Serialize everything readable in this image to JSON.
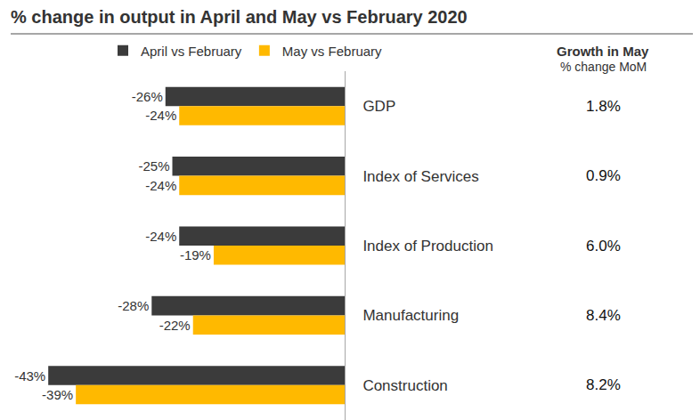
{
  "chart_data": {
    "type": "bar",
    "title": "% change in output in April and May vs February 2020",
    "orientation": "horizontal",
    "categories": [
      "GDP",
      "Index of Services",
      "Index of Production",
      "Manufacturing",
      "Construction"
    ],
    "series": [
      {
        "name": "April vs February",
        "color": "#3b3b3b",
        "values": [
          -26,
          -25,
          -24,
          -28,
          -43
        ],
        "value_labels": [
          "-26%",
          "-25%",
          "-24%",
          "-28%",
          "-43%"
        ]
      },
      {
        "name": "May vs February",
        "color": "#ffb900",
        "values": [
          -24,
          -24,
          -19,
          -22,
          -39
        ],
        "value_labels": [
          "-24%",
          "-24%",
          "-19%",
          "-22%",
          "-39%"
        ]
      }
    ],
    "xlim": [
      -50,
      0
    ],
    "xticks": [
      -50,
      0
    ],
    "grid": false,
    "legend": "top",
    "data_labels": true,
    "tick_labels": "y",
    "growth_in_may": {
      "title": "Growth in May",
      "subtitle": "% change MoM",
      "values": [
        1.8,
        0.9,
        6.0,
        8.4,
        8.2
      ],
      "value_labels": [
        "1.8%",
        "0.9%",
        "6.0%",
        "8.4%",
        "8.2%"
      ]
    }
  }
}
